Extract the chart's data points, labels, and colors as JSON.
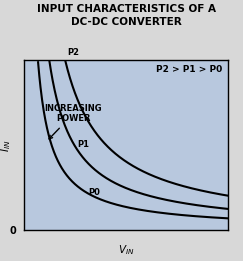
{
  "title_line1": "INPUT CHARACTERISTICS OF A",
  "title_line2": "DC-DC CONVERTER",
  "xlabel": "V",
  "xlabel_sub": "IN",
  "ylabel": "I",
  "ylabel_sub": "IN",
  "origin_label": "0",
  "annotation_text": "INCREASING\nPOWER",
  "legend_text": "P2 > P1 > P0",
  "curve_labels": [
    "P0",
    "P1",
    "P2"
  ],
  "bg_color": "#b8c8de",
  "outer_bg": "#d8d8d8",
  "curve_color": "#000000",
  "title_fontsize": 7.5,
  "axis_label_fontsize": 7,
  "curve_label_fontsize": 6,
  "annotation_fontsize": 6,
  "legend_fontsize": 6.5,
  "curve_k_values": [
    0.6,
    1.1,
    1.8
  ],
  "x_range": [
    0.03,
    3.0
  ],
  "y_range": [
    0.03,
    3.0
  ]
}
